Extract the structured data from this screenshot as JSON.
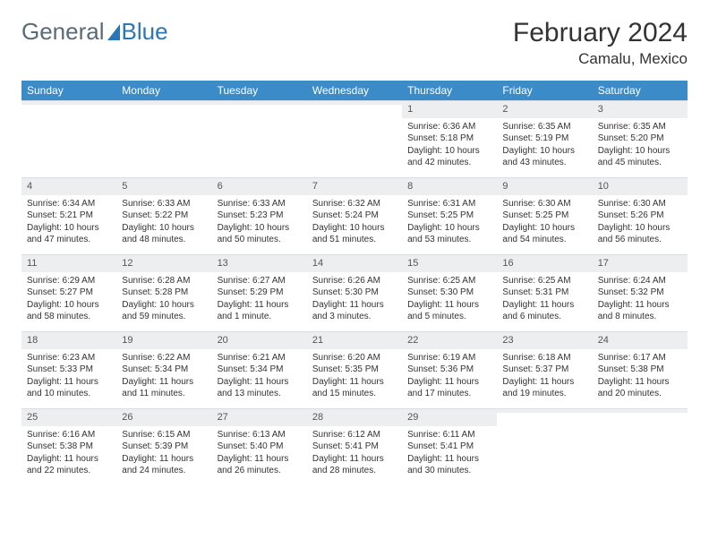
{
  "brand": {
    "part1": "General",
    "part2": "Blue"
  },
  "title": "February 2024",
  "location": "Camalu, Mexico",
  "colors": {
    "header_bg": "#3b8bc9",
    "header_text": "#ffffff",
    "daynum_bg": "#eceef0",
    "brand_blue": "#2978b5",
    "text": "#333333"
  },
  "weekdays": [
    "Sunday",
    "Monday",
    "Tuesday",
    "Wednesday",
    "Thursday",
    "Friday",
    "Saturday"
  ],
  "weeks": [
    [
      {
        "n": "",
        "sr": "",
        "ss": "",
        "dl": ""
      },
      {
        "n": "",
        "sr": "",
        "ss": "",
        "dl": ""
      },
      {
        "n": "",
        "sr": "",
        "ss": "",
        "dl": ""
      },
      {
        "n": "",
        "sr": "",
        "ss": "",
        "dl": ""
      },
      {
        "n": "1",
        "sr": "Sunrise: 6:36 AM",
        "ss": "Sunset: 5:18 PM",
        "dl": "Daylight: 10 hours and 42 minutes."
      },
      {
        "n": "2",
        "sr": "Sunrise: 6:35 AM",
        "ss": "Sunset: 5:19 PM",
        "dl": "Daylight: 10 hours and 43 minutes."
      },
      {
        "n": "3",
        "sr": "Sunrise: 6:35 AM",
        "ss": "Sunset: 5:20 PM",
        "dl": "Daylight: 10 hours and 45 minutes."
      }
    ],
    [
      {
        "n": "4",
        "sr": "Sunrise: 6:34 AM",
        "ss": "Sunset: 5:21 PM",
        "dl": "Daylight: 10 hours and 47 minutes."
      },
      {
        "n": "5",
        "sr": "Sunrise: 6:33 AM",
        "ss": "Sunset: 5:22 PM",
        "dl": "Daylight: 10 hours and 48 minutes."
      },
      {
        "n": "6",
        "sr": "Sunrise: 6:33 AM",
        "ss": "Sunset: 5:23 PM",
        "dl": "Daylight: 10 hours and 50 minutes."
      },
      {
        "n": "7",
        "sr": "Sunrise: 6:32 AM",
        "ss": "Sunset: 5:24 PM",
        "dl": "Daylight: 10 hours and 51 minutes."
      },
      {
        "n": "8",
        "sr": "Sunrise: 6:31 AM",
        "ss": "Sunset: 5:25 PM",
        "dl": "Daylight: 10 hours and 53 minutes."
      },
      {
        "n": "9",
        "sr": "Sunrise: 6:30 AM",
        "ss": "Sunset: 5:25 PM",
        "dl": "Daylight: 10 hours and 54 minutes."
      },
      {
        "n": "10",
        "sr": "Sunrise: 6:30 AM",
        "ss": "Sunset: 5:26 PM",
        "dl": "Daylight: 10 hours and 56 minutes."
      }
    ],
    [
      {
        "n": "11",
        "sr": "Sunrise: 6:29 AM",
        "ss": "Sunset: 5:27 PM",
        "dl": "Daylight: 10 hours and 58 minutes."
      },
      {
        "n": "12",
        "sr": "Sunrise: 6:28 AM",
        "ss": "Sunset: 5:28 PM",
        "dl": "Daylight: 10 hours and 59 minutes."
      },
      {
        "n": "13",
        "sr": "Sunrise: 6:27 AM",
        "ss": "Sunset: 5:29 PM",
        "dl": "Daylight: 11 hours and 1 minute."
      },
      {
        "n": "14",
        "sr": "Sunrise: 6:26 AM",
        "ss": "Sunset: 5:30 PM",
        "dl": "Daylight: 11 hours and 3 minutes."
      },
      {
        "n": "15",
        "sr": "Sunrise: 6:25 AM",
        "ss": "Sunset: 5:30 PM",
        "dl": "Daylight: 11 hours and 5 minutes."
      },
      {
        "n": "16",
        "sr": "Sunrise: 6:25 AM",
        "ss": "Sunset: 5:31 PM",
        "dl": "Daylight: 11 hours and 6 minutes."
      },
      {
        "n": "17",
        "sr": "Sunrise: 6:24 AM",
        "ss": "Sunset: 5:32 PM",
        "dl": "Daylight: 11 hours and 8 minutes."
      }
    ],
    [
      {
        "n": "18",
        "sr": "Sunrise: 6:23 AM",
        "ss": "Sunset: 5:33 PM",
        "dl": "Daylight: 11 hours and 10 minutes."
      },
      {
        "n": "19",
        "sr": "Sunrise: 6:22 AM",
        "ss": "Sunset: 5:34 PM",
        "dl": "Daylight: 11 hours and 11 minutes."
      },
      {
        "n": "20",
        "sr": "Sunrise: 6:21 AM",
        "ss": "Sunset: 5:34 PM",
        "dl": "Daylight: 11 hours and 13 minutes."
      },
      {
        "n": "21",
        "sr": "Sunrise: 6:20 AM",
        "ss": "Sunset: 5:35 PM",
        "dl": "Daylight: 11 hours and 15 minutes."
      },
      {
        "n": "22",
        "sr": "Sunrise: 6:19 AM",
        "ss": "Sunset: 5:36 PM",
        "dl": "Daylight: 11 hours and 17 minutes."
      },
      {
        "n": "23",
        "sr": "Sunrise: 6:18 AM",
        "ss": "Sunset: 5:37 PM",
        "dl": "Daylight: 11 hours and 19 minutes."
      },
      {
        "n": "24",
        "sr": "Sunrise: 6:17 AM",
        "ss": "Sunset: 5:38 PM",
        "dl": "Daylight: 11 hours and 20 minutes."
      }
    ],
    [
      {
        "n": "25",
        "sr": "Sunrise: 6:16 AM",
        "ss": "Sunset: 5:38 PM",
        "dl": "Daylight: 11 hours and 22 minutes."
      },
      {
        "n": "26",
        "sr": "Sunrise: 6:15 AM",
        "ss": "Sunset: 5:39 PM",
        "dl": "Daylight: 11 hours and 24 minutes."
      },
      {
        "n": "27",
        "sr": "Sunrise: 6:13 AM",
        "ss": "Sunset: 5:40 PM",
        "dl": "Daylight: 11 hours and 26 minutes."
      },
      {
        "n": "28",
        "sr": "Sunrise: 6:12 AM",
        "ss": "Sunset: 5:41 PM",
        "dl": "Daylight: 11 hours and 28 minutes."
      },
      {
        "n": "29",
        "sr": "Sunrise: 6:11 AM",
        "ss": "Sunset: 5:41 PM",
        "dl": "Daylight: 11 hours and 30 minutes."
      },
      {
        "n": "",
        "sr": "",
        "ss": "",
        "dl": ""
      },
      {
        "n": "",
        "sr": "",
        "ss": "",
        "dl": ""
      }
    ]
  ]
}
